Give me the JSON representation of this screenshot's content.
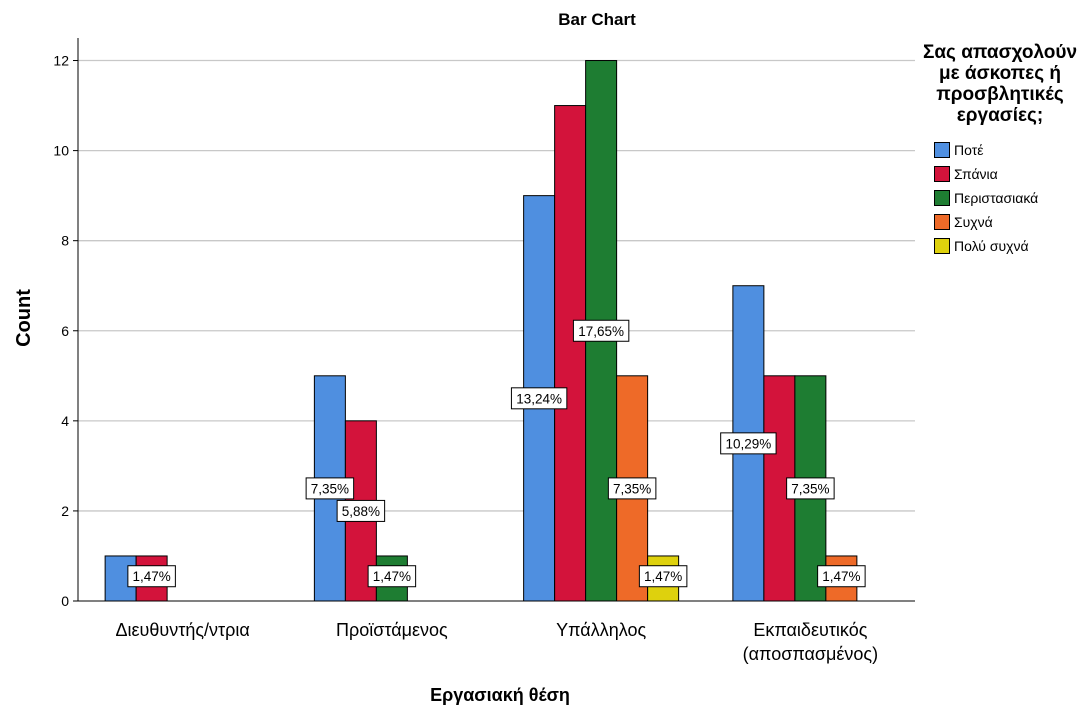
{
  "chart_data": {
    "type": "bar",
    "title": "Bar Chart",
    "xlabel": "Εργασιακή θέση",
    "ylabel": "Count",
    "ylim": [
      0,
      12.5
    ],
    "yticks": [
      0,
      2,
      4,
      6,
      8,
      10,
      12
    ],
    "grid": true,
    "legend_position": "right",
    "legend_title": "Σας απασχολούν με άσκοπες ή προσβλητικές εργασίες;",
    "categories": [
      [
        "Διευθυντής/ντρια"
      ],
      [
        "Προϊστάμενος"
      ],
      [
        "Υπάλληλος"
      ],
      [
        "Εκπαιδευτικός",
        "(αποσπασμένος)"
      ]
    ],
    "series": [
      {
        "name": "Ποτέ",
        "color": "#4f8fe0",
        "values": [
          1,
          5,
          9,
          7
        ]
      },
      {
        "name": "Σπάνια",
        "color": "#d3133b",
        "values": [
          1,
          4,
          11,
          5
        ]
      },
      {
        "name": "Περιστασιακά",
        "color": "#1e7d32",
        "values": [
          0,
          1,
          12,
          5
        ]
      },
      {
        "name": "Συχνά",
        "color": "#ee6a28",
        "values": [
          0,
          0,
          5,
          1
        ]
      },
      {
        "name": "Πολύ συχνά",
        "color": "#ded10d",
        "values": [
          0,
          0,
          1,
          0
        ]
      }
    ],
    "data_labels": [
      {
        "category": 0,
        "series": 1,
        "text": "1,47%",
        "y": 0.55
      },
      {
        "category": 1,
        "series": 0,
        "text": "7,35%",
        "y": 2.5
      },
      {
        "category": 1,
        "series": 1,
        "text": "5,88%",
        "y": 2.0
      },
      {
        "category": 1,
        "series": 2,
        "text": "1,47%",
        "y": 0.55
      },
      {
        "category": 2,
        "series": 0,
        "text": "13,24%",
        "y": 4.5
      },
      {
        "category": 2,
        "series": 2,
        "text": "17,65%",
        "y": 6.0
      },
      {
        "category": 2,
        "series": 3,
        "text": "7,35%",
        "y": 2.5
      },
      {
        "category": 2,
        "series": 4,
        "text": "1,47%",
        "y": 0.55
      },
      {
        "category": 3,
        "series": 0,
        "text": "10,29%",
        "y": 3.5
      },
      {
        "category": 3,
        "series": 2,
        "text": "7,35%",
        "y": 2.5
      },
      {
        "category": 3,
        "series": 3,
        "text": "1,47%",
        "y": 0.55
      }
    ]
  }
}
